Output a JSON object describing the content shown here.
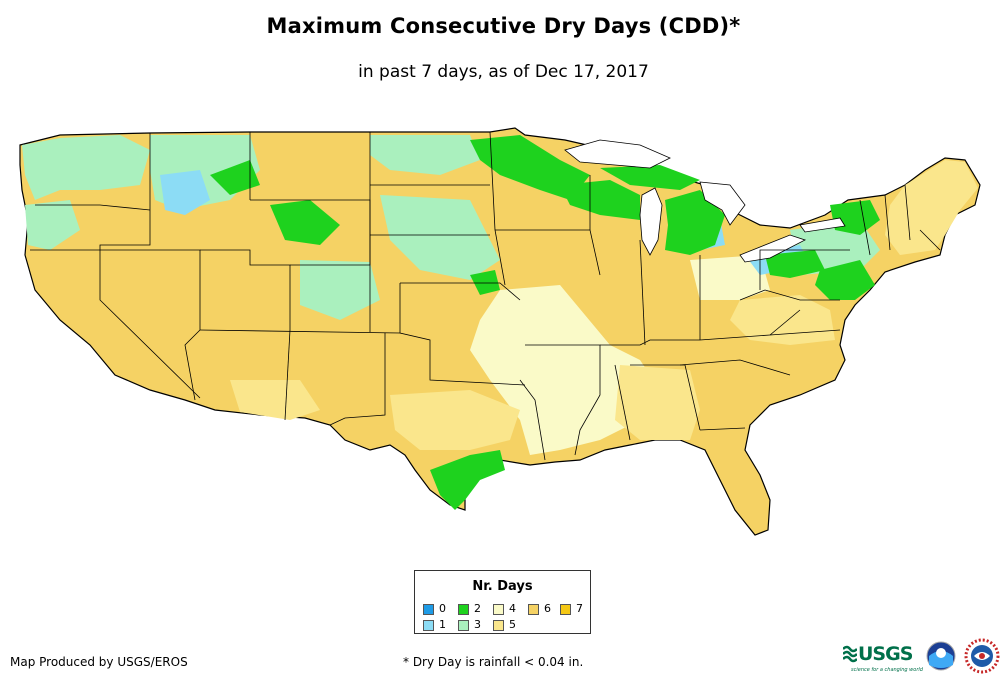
{
  "title": "Maximum Consecutive Dry Days (CDD)*",
  "subtitle": "in past 7 days, as of Dec 17, 2017",
  "legend": {
    "title": "Nr. Days",
    "items": [
      {
        "label": "0",
        "color": "#1e9be6"
      },
      {
        "label": "1",
        "color": "#8cdcf5"
      },
      {
        "label": "2",
        "color": "#1ed21e"
      },
      {
        "label": "3",
        "color": "#aaf0be"
      },
      {
        "label": "4",
        "color": "#fafac8"
      },
      {
        "label": "5",
        "color": "#fae68c"
      },
      {
        "label": "6",
        "color": "#f5d264"
      },
      {
        "label": "7",
        "color": "#f5c814"
      }
    ]
  },
  "credit": "Map Produced by USGS/EROS",
  "footnote": "* Dry Day is rainfall < 0.04 in.",
  "logos": {
    "usgs": "USGS",
    "usgs_tagline": "science for a changing world"
  },
  "colors": {
    "state_border": "#000000"
  },
  "icons": [
    "usgs-logo",
    "noaa-logo",
    "nws-logo"
  ]
}
